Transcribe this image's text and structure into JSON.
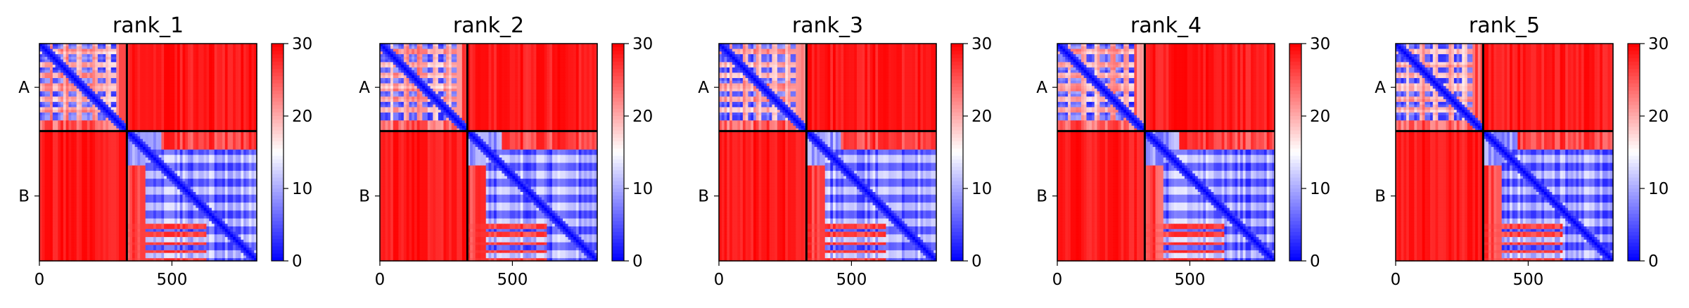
{
  "chart_data": {
    "type": "heatmap",
    "colormap": {
      "name": "bwr",
      "low_color": "#0000ff",
      "mid_color": "#ffffff",
      "high_color": "#ff0000",
      "vmin": 0,
      "vmax": 30,
      "ticks": [
        0,
        10,
        20,
        30
      ],
      "tick_labels": [
        "0",
        "10",
        "20",
        "30"
      ]
    },
    "matrix_size": 820,
    "chain_boundary": 330,
    "x_ticks": [
      0,
      500
    ],
    "x_tick_labels": [
      "0",
      "500"
    ],
    "y_categories": [
      {
        "label": "A",
        "center": 165
      },
      {
        "label": "B",
        "center": 575
      }
    ],
    "chain_separator_color": "#000000",
    "panels": [
      {
        "title": "rank_1"
      },
      {
        "title": "rank_2"
      },
      {
        "title": "rank_3"
      },
      {
        "title": "rank_4"
      },
      {
        "title": "rank_5"
      }
    ]
  }
}
